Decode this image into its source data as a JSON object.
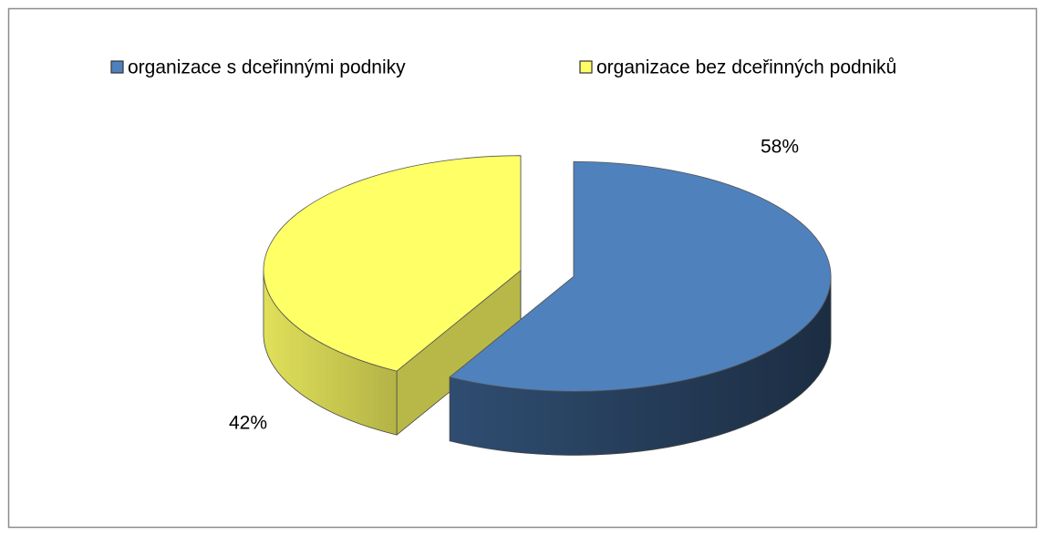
{
  "chart_data": {
    "type": "pie",
    "categories": [
      "organizace s dceřinnými podniky",
      "organizace bez dceřinných podniků"
    ],
    "values": [
      58,
      42
    ],
    "value_labels": [
      "58%",
      "42%"
    ],
    "colors": [
      "#4f81bd",
      "#ffff66"
    ],
    "legend": "top"
  }
}
